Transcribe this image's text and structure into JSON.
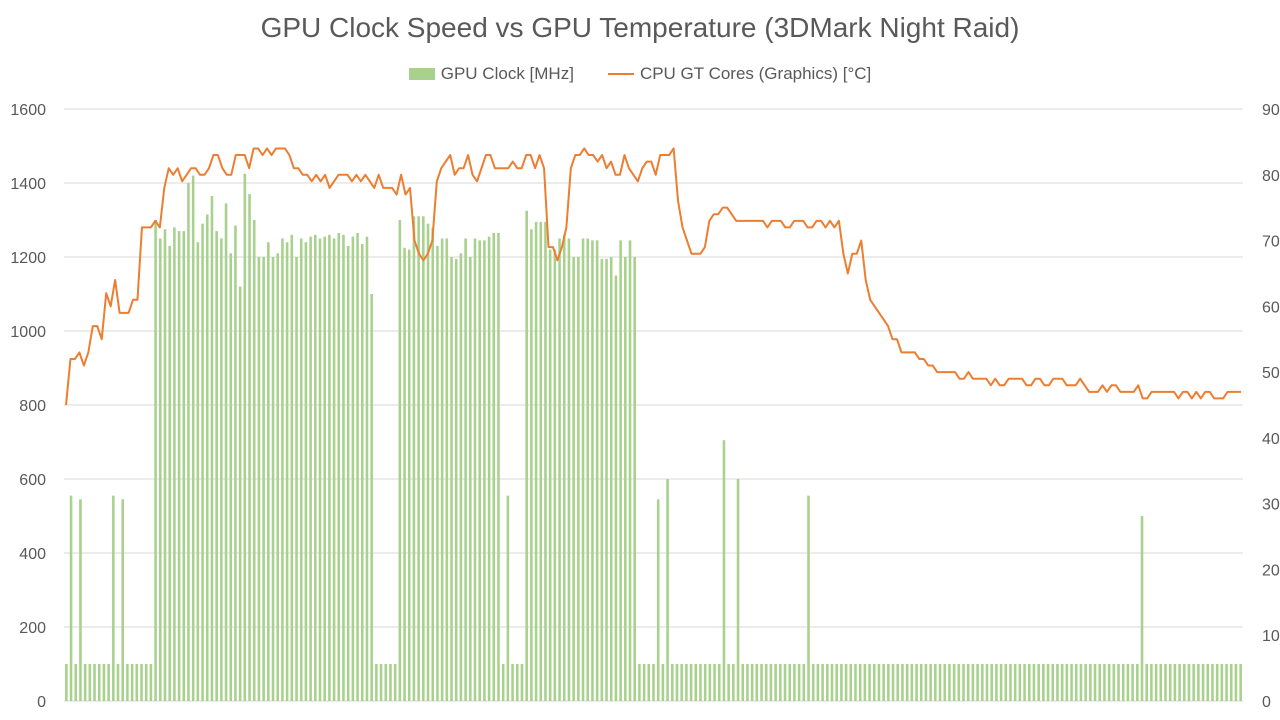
{
  "chart_data": {
    "type": "bar",
    "title": "GPU Clock Speed vs GPU Temperature (3DMark Night Raid)",
    "y_left": {
      "ylim": [
        0,
        1600
      ],
      "ticks": [
        0,
        200,
        400,
        600,
        800,
        1000,
        1200,
        1400,
        1600
      ],
      "tick_labels": [
        "0",
        "200",
        "400",
        "600",
        "800",
        "1000",
        "1200",
        "1400",
        "1600"
      ]
    },
    "y_right": {
      "ylim": [
        0,
        90
      ],
      "ticks": [
        0,
        10,
        20,
        30,
        40,
        50,
        60,
        70,
        80,
        90
      ],
      "tick_labels": [
        "0",
        "10",
        "20",
        "30",
        "40",
        "50",
        "60",
        "70",
        "80",
        "90"
      ]
    },
    "grid": true,
    "legend_position": "top-center",
    "series": [
      {
        "name": "GPU Clock [MHz]",
        "type": "bar",
        "axis": "left",
        "color": "#a9d18e",
        "values": [
          100,
          555,
          100,
          545,
          100,
          100,
          100,
          100,
          100,
          100,
          555,
          100,
          545,
          100,
          100,
          100,
          100,
          100,
          100,
          1300,
          1250,
          1275,
          1230,
          1280,
          1270,
          1270,
          1400,
          1420,
          1240,
          1290,
          1315,
          1365,
          1270,
          1250,
          1345,
          1210,
          1285,
          1120,
          1425,
          1370,
          1300,
          1200,
          1200,
          1240,
          1200,
          1210,
          1250,
          1240,
          1260,
          1200,
          1250,
          1240,
          1255,
          1260,
          1250,
          1255,
          1260,
          1250,
          1265,
          1260,
          1230,
          1255,
          1265,
          1235,
          1255,
          1100,
          100,
          100,
          100,
          100,
          100,
          1300,
          1225,
          1220,
          1310,
          1310,
          1310,
          1290,
          1280,
          1230,
          1250,
          1250,
          1200,
          1195,
          1210,
          1250,
          1200,
          1250,
          1245,
          1245,
          1255,
          1265,
          1265,
          100,
          555,
          100,
          100,
          100,
          1325,
          1275,
          1295,
          1295,
          1295,
          1220,
          1220,
          1250,
          1260,
          1250,
          1200,
          1200,
          1250,
          1250,
          1245,
          1245,
          1195,
          1195,
          1200,
          1150,
          1245,
          1200,
          1245,
          1200,
          100,
          100,
          100,
          100,
          545,
          100,
          600,
          100,
          100,
          100,
          100,
          100,
          100,
          100,
          100,
          100,
          100,
          100,
          705,
          100,
          100,
          600,
          100,
          100,
          100,
          100,
          100,
          100,
          100,
          100,
          100,
          100,
          100,
          100,
          100,
          100,
          555,
          100,
          100,
          100,
          100,
          100,
          100,
          100,
          100,
          100,
          100,
          100,
          100,
          100,
          100,
          100,
          100,
          100,
          100,
          100,
          100,
          100,
          100,
          100,
          100,
          100,
          100,
          100,
          100,
          100,
          100,
          100,
          100,
          100,
          100,
          100,
          100,
          100,
          100,
          100,
          100,
          100,
          100,
          100,
          100,
          100,
          100,
          100,
          100,
          100,
          100,
          100,
          100,
          100,
          100,
          100,
          100,
          100,
          100,
          100,
          100,
          100,
          100,
          100,
          100,
          100,
          100,
          100,
          100,
          100,
          100,
          500,
          100,
          100,
          100,
          100,
          100,
          100,
          100,
          100,
          100,
          100,
          100,
          100,
          100,
          100,
          100,
          100,
          100,
          100,
          100,
          100,
          100
        ]
      },
      {
        "name": "CPU GT Cores (Graphics) [°C]",
        "type": "line",
        "axis": "right",
        "color": "#ed7d31",
        "values": [
          45,
          52,
          52,
          53,
          51,
          53,
          57,
          57,
          55,
          62,
          60,
          64,
          59,
          59,
          59,
          61,
          61,
          72,
          72,
          72,
          73,
          72,
          78,
          81,
          80,
          81,
          79,
          80,
          81,
          81,
          80,
          80,
          81,
          83,
          83,
          81,
          80,
          80,
          83,
          83,
          83,
          81,
          84,
          84,
          83,
          84,
          83,
          84,
          84,
          84,
          83,
          81,
          81,
          80,
          80,
          79,
          80,
          79,
          80,
          78,
          79,
          80,
          80,
          80,
          79,
          80,
          79,
          80,
          79,
          78,
          80,
          78,
          78,
          78,
          77,
          80,
          77,
          78,
          70,
          68,
          67,
          68,
          70,
          79,
          81,
          82,
          83,
          80,
          81,
          81,
          83,
          80,
          79,
          81,
          83,
          83,
          81,
          81,
          81,
          81,
          82,
          81,
          81,
          83,
          83,
          81,
          83,
          81,
          69,
          69,
          67,
          69,
          72,
          81,
          83,
          83,
          84,
          83,
          83,
          82,
          83,
          81,
          82,
          80,
          80,
          83,
          81,
          80,
          79,
          81,
          82,
          82,
          80,
          83,
          83,
          83,
          84,
          76,
          72,
          70,
          68,
          68,
          68,
          69,
          73,
          74,
          74,
          75,
          75,
          74,
          73,
          73,
          73,
          73,
          73,
          73,
          73,
          72,
          73,
          73,
          73,
          72,
          72,
          73,
          73,
          73,
          72,
          72,
          73,
          73,
          72,
          73,
          72,
          73,
          68,
          65,
          68,
          68,
          70,
          64,
          61,
          60,
          59,
          58,
          57,
          55,
          55,
          53,
          53,
          53,
          53,
          52,
          52,
          51,
          51,
          50,
          50,
          50,
          50,
          50,
          49,
          49,
          50,
          49,
          49,
          49,
          49,
          48,
          49,
          48,
          48,
          49,
          49,
          49,
          49,
          48,
          48,
          49,
          49,
          48,
          48,
          49,
          49,
          49,
          48,
          48,
          48,
          49,
          48,
          47,
          47,
          47,
          48,
          47,
          48,
          48,
          47,
          47,
          47,
          47,
          48,
          46,
          46,
          47,
          47,
          47,
          47,
          47,
          47,
          46,
          47,
          47,
          46,
          47,
          46,
          47,
          47,
          46,
          46,
          46,
          47,
          47,
          47,
          47
        ]
      }
    ]
  }
}
